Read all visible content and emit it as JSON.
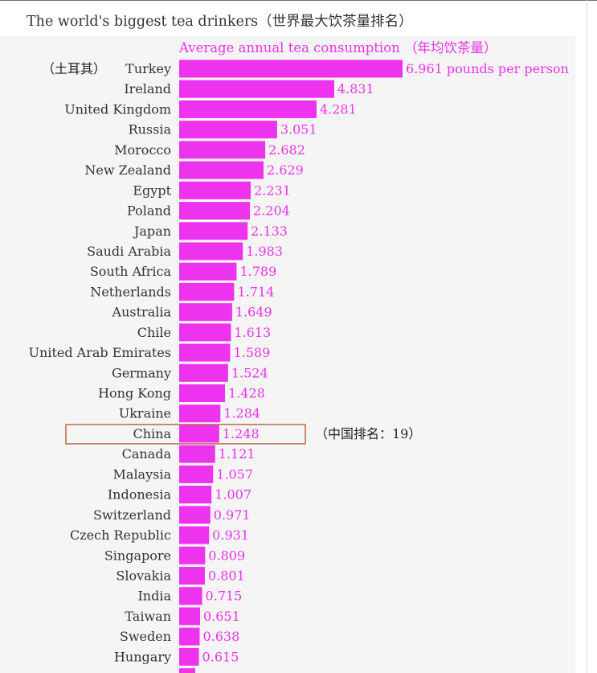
{
  "header": {
    "title": "The world's biggest tea drinkers（世界最大饮茶量排名）",
    "subtitle": "Average annual tea consumption （年均饮茶量）"
  },
  "colors": {
    "bar": "#ee33ee",
    "value_text": "#ffffff",
    "highlight_box": "#c0714f"
  },
  "annotations": {
    "turkey_cn": "（土耳其）",
    "china_rank": "（中国排名：19）",
    "first_value_unit": "pounds per person"
  },
  "chart_data": {
    "type": "bar",
    "orientation": "horizontal",
    "title": "The world's biggest tea drinkers（世界最大饮茶量排名）",
    "subtitle": "Average annual tea consumption （年均饮茶量）",
    "categories": [
      "Turkey",
      "Ireland",
      "United Kingdom",
      "Russia",
      "Morocco",
      "New Zealand",
      "Egypt",
      "Poland",
      "Japan",
      "Saudi Arabia",
      "South Africa",
      "Netherlands",
      "Australia",
      "Chile",
      "United Arab Emirates",
      "Germany",
      "Hong Kong",
      "Ukraine",
      "China",
      "Canada",
      "Malaysia",
      "Indonesia",
      "Switzerland",
      "Czech Republic",
      "Singapore",
      "Slovakia",
      "India",
      "Taiwan",
      "Sweden",
      "Hungary"
    ],
    "values": [
      6.961,
      4.831,
      4.281,
      3.051,
      2.682,
      2.629,
      2.231,
      2.204,
      2.133,
      1.983,
      1.789,
      1.714,
      1.649,
      1.613,
      1.589,
      1.524,
      1.428,
      1.284,
      1.248,
      1.121,
      1.057,
      1.007,
      0.971,
      0.931,
      0.809,
      0.801,
      0.715,
      0.651,
      0.638,
      0.615
    ],
    "value_labels": [
      "6.961 pounds per person",
      "4.831",
      "4.281",
      "3.051",
      "2.682",
      "2.629",
      "2.231",
      "2.204",
      "2.133",
      "1.983",
      "1.789",
      "1.714",
      "1.649",
      "1.613",
      "1.589",
      "1.524",
      "1.428",
      "1.284",
      "1.248",
      "1.121",
      "1.057",
      "1.007",
      "0.971",
      "0.931",
      "0.809",
      "0.801",
      "0.715",
      "0.651",
      "0.638",
      "0.615"
    ],
    "highlight": "China",
    "xlim": [
      0,
      6.961
    ]
  }
}
